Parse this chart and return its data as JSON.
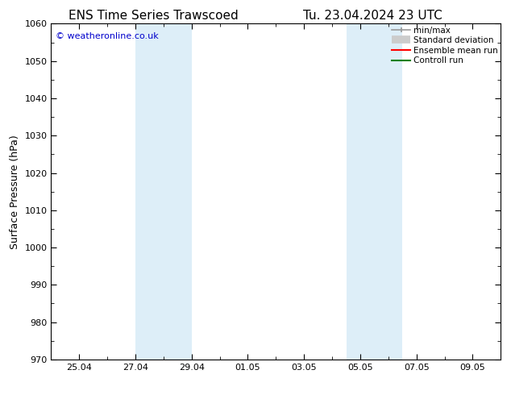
{
  "title_left": "ENS Time Series Trawscoed",
  "title_right": "Tu. 23.04.2024 23 UTC",
  "ylabel": "Surface Pressure (hPa)",
  "ylim": [
    970,
    1060
  ],
  "yticks": [
    970,
    980,
    990,
    1000,
    1010,
    1020,
    1030,
    1040,
    1050,
    1060
  ],
  "xtick_labels": [
    "25.04",
    "27.04",
    "29.04",
    "01.05",
    "03.05",
    "05.05",
    "07.05",
    "09.05"
  ],
  "xtick_positions": [
    1.0,
    3.0,
    5.0,
    7.0,
    9.0,
    11.0,
    13.0,
    15.0
  ],
  "xlim": [
    0,
    16
  ],
  "shaded_bands": [
    {
      "x_start": 3.0,
      "x_end": 5.0
    },
    {
      "x_start": 10.5,
      "x_end": 11.5
    },
    {
      "x_start": 11.5,
      "x_end": 12.5
    }
  ],
  "shade_color": "#ddeef8",
  "background_color": "#ffffff",
  "copyright_text": "© weatheronline.co.uk",
  "legend_items": [
    "min/max",
    "Standard deviation",
    "Ensemble mean run",
    "Controll run"
  ],
  "legend_line_colors": [
    "#999999",
    "#cccccc",
    "#ff0000",
    "#008000"
  ],
  "title_fontsize": 11,
  "ylabel_fontsize": 9,
  "tick_fontsize": 8,
  "copyright_fontsize": 8,
  "legend_fontsize": 7.5
}
